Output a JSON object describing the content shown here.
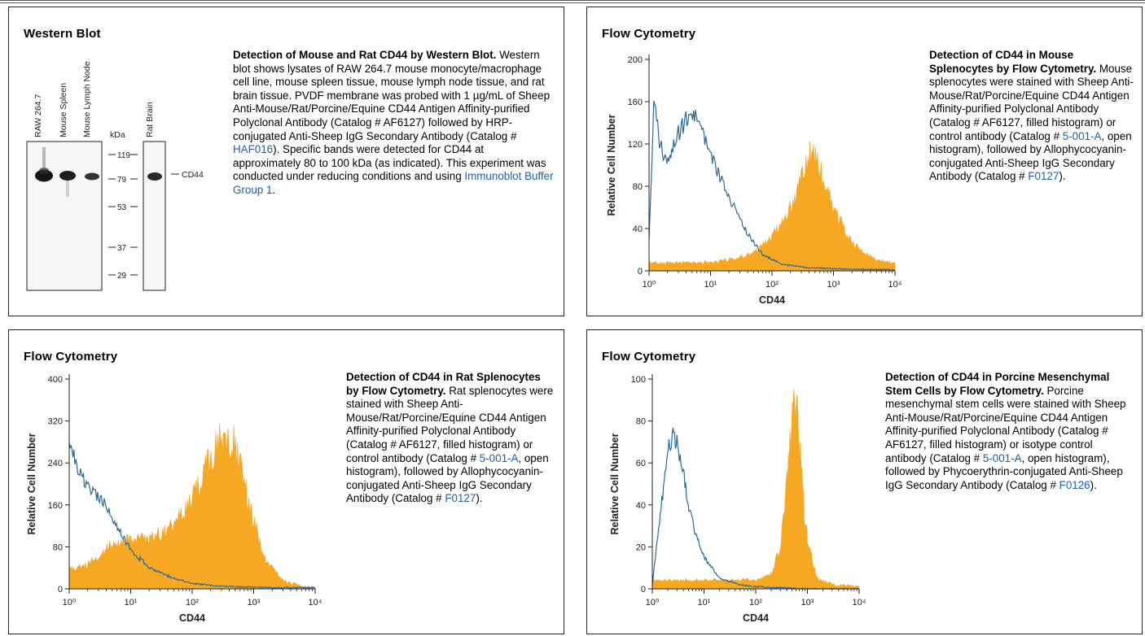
{
  "panels": [
    {
      "title": "Western Blot",
      "description": {
        "heading": "Detection of Mouse and Rat CD44 by Western Blot.",
        "parts": [
          {
            "text": " Western blot shows lysates of RAW 264.7 mouse monocyte/macrophage cell line, mouse spleen tissue, mouse lymph node tissue, and rat brain tissue. PVDF membrane was probed with 1 µg/mL of Sheep Anti-Mouse/Rat/Porcine/Equine CD44 Antigen Affinity-purified Polyclonal Antibody (Catalog # AF6127) followed by HRP-conjugated Anti-Sheep IgG Secondary Antibody (Catalog # ",
            "link": false
          },
          {
            "text": "HAF016",
            "link": true
          },
          {
            "text": "). Specific bands were detected for CD44 at approximately 80 to 100 kDa (as indicated). This experiment was conducted under reducing conditions and using ",
            "link": false
          },
          {
            "text": "Immunoblot Buffer Group 1",
            "link": true
          },
          {
            "text": ".",
            "link": false
          }
        ]
      },
      "blot": {
        "lanes": [
          "RAW 264.7",
          "Mouse Spleen",
          "Mouse Lymph Node"
        ],
        "second_lanes": [
          "Rat Brain"
        ],
        "kda_label": "kDa",
        "markers": [
          "119",
          "79",
          "53",
          "37",
          "29"
        ],
        "band_label": "CD44"
      }
    },
    {
      "title": "Flow Cytometry",
      "description": {
        "heading": "Detection of CD44 in Mouse Splenocytes by Flow Cytometry.",
        "parts": [
          {
            "text": " Mouse splenocytes were stained with Sheep Anti-Mouse/Rat/Porcine/Equine CD44 Antigen Affinity-purified Polyclonal Antibody (Catalog # AF6127, filled histogram) or control antibody (Catalog # ",
            "link": false
          },
          {
            "text": "5-001-A",
            "link": true
          },
          {
            "text": ", open histogram), followed by Allophycocyanin-conjugated Anti-Sheep IgG Secondary Antibody (Catalog # ",
            "link": false
          },
          {
            "text": "F0127",
            "link": true
          },
          {
            "text": ").",
            "link": false
          }
        ]
      }
    },
    {
      "title": "Flow Cytometry",
      "description": {
        "heading": "Detection of CD44 in Rat Splenocytes by Flow Cytometry.",
        "parts": [
          {
            "text": " Rat splenocytes were stained with Sheep Anti-Mouse/Rat/Porcine/Equine CD44 Antigen Affinity-purified Polyclonal Antibody (Catalog # AF6127, filled histogram) or control antibody (Catalog # ",
            "link": false
          },
          {
            "text": "5-001-A",
            "link": true
          },
          {
            "text": ", open histogram), followed by Allophycocyanin-conjugated Anti-Sheep IgG Secondary Antibody (Catalog # ",
            "link": false
          },
          {
            "text": "F0127",
            "link": true
          },
          {
            "text": ").",
            "link": false
          }
        ]
      }
    },
    {
      "title": "Flow Cytometry",
      "description": {
        "heading": "Detection of CD44 in Porcine Mesenchymal Stem Cells by Flow Cytometry.",
        "parts": [
          {
            "text": " Porcine mesenchymal stem cells were stained with Sheep Anti-Mouse/Rat/Porcine/Equine CD44 Antigen Affinity-purified Polyclonal Antibody (Catalog # AF6127, filled histogram) or isotype control antibody (Catalog # ",
            "link": false
          },
          {
            "text": "5-001-A",
            "link": true
          },
          {
            "text": ", open histogram), followed by Phycoerythrin-conjugated Anti-Sheep IgG Secondary Antibody (Catalog # ",
            "link": false
          },
          {
            "text": "F0126",
            "link": true
          },
          {
            "text": ").",
            "link": false
          }
        ]
      }
    }
  ],
  "chart_data": [
    {
      "type": "area",
      "title": "",
      "xlabel": "CD44",
      "ylabel": "Relative Cell Number",
      "x_scale": "log",
      "xlim": [
        1,
        10000
      ],
      "ylim": [
        0,
        200
      ],
      "x_ticks": [
        "10⁰",
        "10¹",
        "10²",
        "10³",
        "10⁴"
      ],
      "y_ticks": [
        "0",
        "40",
        "80",
        "120",
        "160",
        "200"
      ],
      "grid": false,
      "colors": {
        "filled": "#f7a823",
        "open": "#2b6a9c"
      },
      "series": [
        {
          "style": "filled",
          "x": [
            1,
            2,
            4,
            10,
            30,
            60,
            100,
            200,
            350,
            450,
            600,
            1000,
            2000,
            5000,
            10000
          ],
          "y": [
            8,
            7,
            8,
            8,
            12,
            20,
            32,
            60,
            95,
            115,
            95,
            60,
            25,
            10,
            7
          ]
        },
        {
          "style": "open",
          "x": [
            1,
            1.2,
            1.5,
            2,
            3,
            5,
            7,
            10,
            20,
            40,
            70,
            150,
            400,
            1000,
            10000
          ],
          "y": [
            30,
            160,
            120,
            100,
            130,
            152,
            140,
            110,
            70,
            35,
            15,
            6,
            3,
            2,
            1
          ]
        }
      ]
    },
    {
      "type": "area",
      "title": "",
      "xlabel": "CD44",
      "ylabel": "Relative Cell Number",
      "x_scale": "log",
      "xlim": [
        1,
        10000
      ],
      "ylim": [
        0,
        400
      ],
      "x_ticks": [
        "10⁰",
        "10¹",
        "10²",
        "10³",
        "10⁴"
      ],
      "y_ticks": [
        "0",
        "80",
        "160",
        "240",
        "320",
        "400"
      ],
      "grid": false,
      "colors": {
        "filled": "#f7a823",
        "open": "#2b6a9c"
      },
      "series": [
        {
          "style": "filled",
          "x": [
            1,
            2,
            5,
            10,
            20,
            50,
            100,
            200,
            350,
            500,
            800,
            1500,
            3000,
            6000,
            10000
          ],
          "y": [
            40,
            45,
            85,
            95,
            95,
            120,
            170,
            250,
            295,
            270,
            170,
            60,
            15,
            5,
            3
          ]
        },
        {
          "style": "open",
          "x": [
            1,
            1.3,
            1.7,
            2.5,
            4,
            6,
            10,
            20,
            50,
            100,
            300,
            1000,
            10000
          ],
          "y": [
            280,
            240,
            210,
            180,
            160,
            120,
            75,
            40,
            20,
            10,
            5,
            3,
            2
          ]
        }
      ]
    },
    {
      "type": "area",
      "title": "",
      "xlabel": "CD44",
      "ylabel": "Relative Cell Number",
      "x_scale": "log",
      "xlim": [
        1,
        10000
      ],
      "ylim": [
        0,
        100
      ],
      "x_ticks": [
        "10⁰",
        "10¹",
        "10²",
        "10³",
        "10⁴"
      ],
      "y_ticks": [
        "0",
        "20",
        "40",
        "60",
        "80",
        "100"
      ],
      "grid": false,
      "colors": {
        "filled": "#f7a823",
        "open": "#2b6a9c"
      },
      "series": [
        {
          "style": "filled",
          "x": [
            1,
            10,
            100,
            200,
            300,
            400,
            500,
            600,
            700,
            900,
            1500,
            3000,
            10000
          ],
          "y": [
            4,
            4,
            4,
            7,
            20,
            50,
            80,
            90,
            70,
            30,
            5,
            2,
            1
          ]
        },
        {
          "style": "open",
          "x": [
            1,
            1.5,
            2,
            2.5,
            3,
            4,
            5,
            7,
            10,
            20,
            50,
            100,
            1000,
            10000
          ],
          "y": [
            2,
            40,
            65,
            75,
            70,
            55,
            40,
            25,
            15,
            5,
            2,
            1,
            0,
            0
          ]
        }
      ]
    }
  ]
}
